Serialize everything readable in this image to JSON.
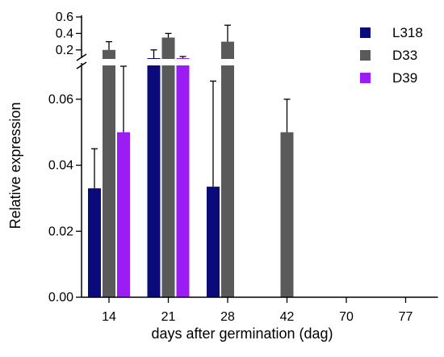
{
  "chart_data": {
    "type": "bar",
    "categories": [
      "14",
      "21",
      "28",
      "42",
      "70",
      "77"
    ],
    "series": [
      {
        "name": "L318",
        "color": "#0a0a7a",
        "values": [
          0.033,
          0.1,
          0.0335,
          0,
          0,
          0
        ],
        "errors": [
          0.012,
          0.1,
          0.032,
          0,
          0,
          0
        ]
      },
      {
        "name": "D33",
        "color": "#5a5a5a",
        "values": [
          0.2,
          0.35,
          0.3,
          0.05,
          0,
          0
        ],
        "errors": [
          0.1,
          0.05,
          0.2,
          0.01,
          0,
          0
        ]
      },
      {
        "name": "D39",
        "color": "#9b1cf5",
        "values": [
          0.05,
          0.1,
          0,
          0,
          0,
          0
        ],
        "errors": [
          0.02,
          0.02,
          0,
          0,
          0,
          0
        ]
      }
    ],
    "xlabel": "days after germination (dag)",
    "ylabel": "Relative expression",
    "y_axis_broken": true,
    "y_lower_segment": {
      "range": [
        0,
        0.07
      ],
      "ticks": [
        "0.00",
        "0.02",
        "0.04",
        "0.06"
      ]
    },
    "y_upper_segment": {
      "range": [
        0.1,
        0.6
      ],
      "ticks": [
        "0.2",
        "0.4",
        "0.6"
      ]
    },
    "legend": "top-right",
    "grid": false
  }
}
